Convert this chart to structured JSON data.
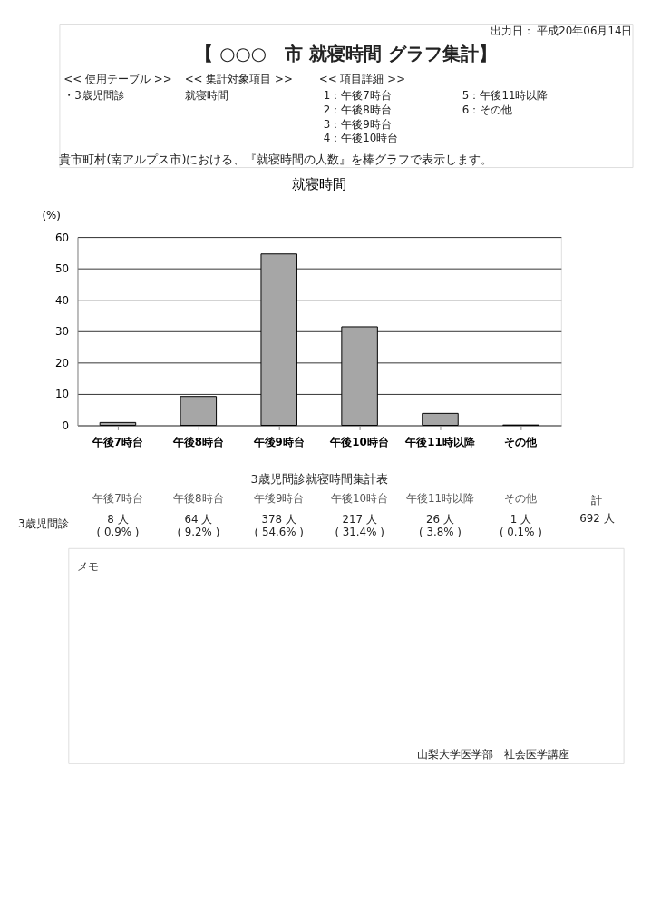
{
  "chart_data": {
    "type": "bar",
    "title": "就寝時間",
    "ylabel": "(%)",
    "categories": [
      "午後7時台",
      "午後8時台",
      "午後9時台",
      "午後10時台",
      "午後11時以降",
      "その他"
    ],
    "values": [
      0.9,
      9.2,
      54.6,
      31.4,
      3.8,
      0.1
    ],
    "color": "#a6a6a6",
    "value_labels": [
      "8 人\n( 0.9% )",
      "64 人\n( 9.2% )",
      "378 人\n( 54.6% )",
      "217 人\n( 31.4% )",
      "26 人\n( 3.8% )",
      "1 人\n( 0.1% )"
    ],
    "ylim": [
      0,
      60
    ],
    "yticks": [
      0,
      10,
      20,
      30,
      40,
      50,
      60
    ],
    "grid": "y",
    "annotations": [
      "出力日： 平成20年06月14日",
      "【 ○○○　市 就寝時間 グラフ集計】",
      "<< 使用テーブル >>",
      "・3歳児問診",
      "<< 集計対象項目 >>",
      "就寝時間",
      "<< 項目詳細 >>",
      "1：午後7時台",
      "2：午後8時台",
      "3：午後9時台",
      "4：午後10時台",
      "5：午後11時以降",
      "6：その他",
      "貴市町村(南アルプス市)における、『就寝時間の人数』を棒グラフで表示します。",
      "3歳児問診就寝時間集計表",
      "3歳児問診",
      "計",
      "692 人",
      "メモ",
      "山梨大学医学部　社会医学講座"
    ]
  }
}
